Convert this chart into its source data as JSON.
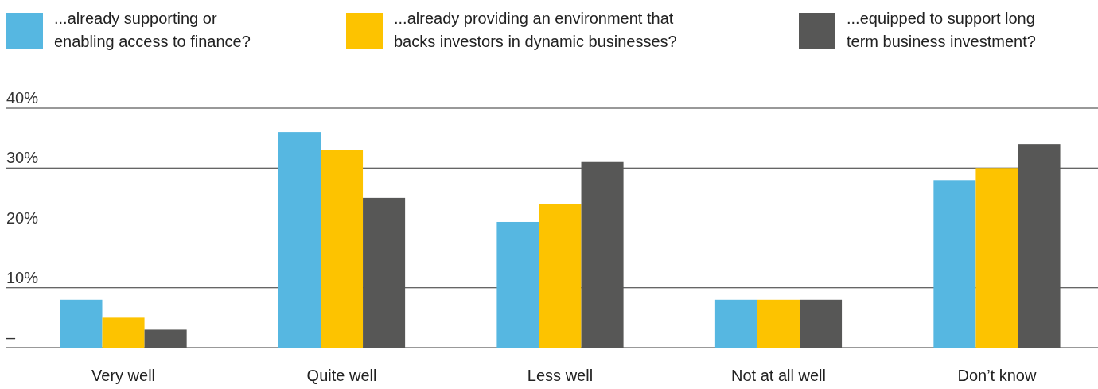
{
  "chart_data": {
    "type": "bar",
    "categories": [
      "Very well",
      "Quite well",
      "Less well",
      "Not at all well",
      "Don’t know"
    ],
    "series": [
      {
        "name": "...already supporting or enabling access to finance?",
        "color": "#56b7e1",
        "values": [
          8,
          36,
          21,
          8,
          28
        ]
      },
      {
        "name": "...already providing an environment that backs investors in dynamic businesses?",
        "color": "#fdc300",
        "values": [
          5,
          33,
          24,
          8,
          30
        ]
      },
      {
        "name": "...equipped to support long term business investment?",
        "color": "#575756",
        "values": [
          3,
          25,
          31,
          8,
          34
        ]
      }
    ],
    "ylim": [
      0,
      40
    ],
    "yticks": [
      {
        "value": 0,
        "label": "–"
      },
      {
        "value": 10,
        "label": "10%"
      },
      {
        "value": 20,
        "label": "20%"
      },
      {
        "value": 30,
        "label": "30%"
      },
      {
        "value": 40,
        "label": "40%"
      }
    ],
    "grid": "y",
    "legend": "top"
  }
}
